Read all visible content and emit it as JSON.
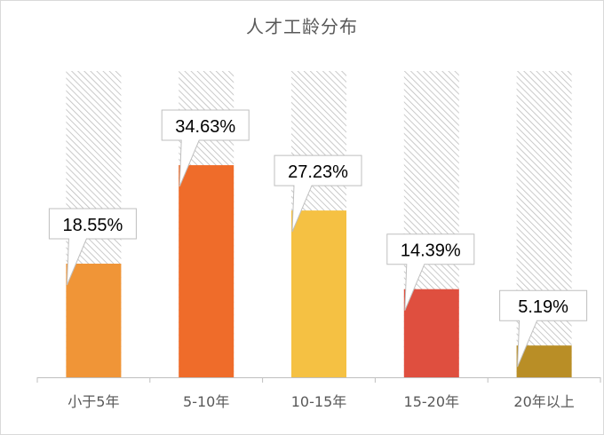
{
  "chart_data": {
    "type": "bar",
    "title": "人才工龄分布",
    "categories": [
      "小于5年",
      "5-10年",
      "10-15年",
      "15-20年",
      "20年以上"
    ],
    "values": [
      18.55,
      34.63,
      27.23,
      14.39,
      5.19
    ],
    "labels": [
      "18.55%",
      "34.63%",
      "27.23%",
      "14.39%",
      "5.19%"
    ],
    "background_value": 50,
    "ylim": [
      0,
      50
    ],
    "colors": [
      "#F09537",
      "#EF6C2A",
      "#F5C143",
      "#DF4F3F",
      "#B98E26"
    ],
    "xlabel": "",
    "ylabel": "",
    "grid": false,
    "legend": "none"
  }
}
